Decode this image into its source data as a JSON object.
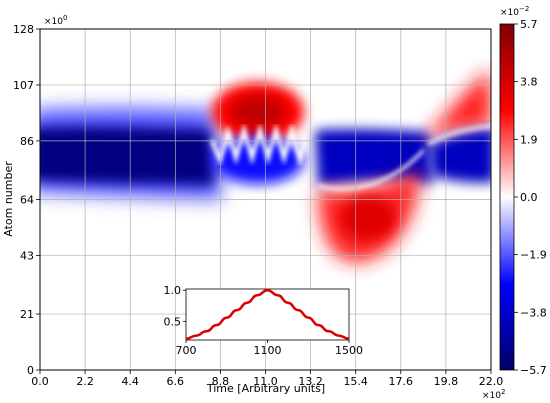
{
  "chart_data": [
    {
      "type": "heatmap",
      "title": "",
      "xlabel": "Time [Arbitrary units]",
      "ylabel": "Atom number",
      "x_multiplier_label": "×10^2",
      "y_multiplier_label": "×10^0",
      "xlim": [
        0,
        22
      ],
      "ylim": [
        0,
        128
      ],
      "x_ticks": [
        "0.0",
        "2.2",
        "4.4",
        "6.6",
        "8.8",
        "11.0",
        "13.2",
        "15.4",
        "17.6",
        "19.8",
        "22.0"
      ],
      "y_ticks": [
        "0",
        "21",
        "43",
        "64",
        "86",
        "107",
        "128"
      ],
      "grid": true,
      "colorbar": {
        "multiplier_label": "×10^-2",
        "min": -5.7,
        "max": 5.7,
        "ticks": [
          "5.7",
          "3.8",
          "1.9",
          "0.0",
          "-1.9",
          "-3.8",
          "-5.7"
        ],
        "colors": [
          "#000066",
          "#0000ff",
          "#ffffff",
          "#ff0000",
          "#800000"
        ]
      }
    },
    {
      "type": "line",
      "role": "inset",
      "xlim": [
        700,
        1500
      ],
      "ylim": [
        0.2,
        1.02
      ],
      "x_ticks": [
        "700",
        "1100",
        "1500"
      ],
      "y_ticks": [
        "0.5",
        "1.0"
      ],
      "series": [
        {
          "color": "#dd0000",
          "x": [
            700,
            750,
            800,
            850,
            900,
            950,
            1000,
            1050,
            1100,
            1150,
            1200,
            1250,
            1300,
            1350,
            1400,
            1450,
            1500
          ],
          "values": [
            0.22,
            0.27,
            0.34,
            0.44,
            0.56,
            0.68,
            0.8,
            0.92,
            1.0,
            0.92,
            0.8,
            0.68,
            0.56,
            0.44,
            0.34,
            0.27,
            0.22
          ]
        }
      ]
    }
  ]
}
